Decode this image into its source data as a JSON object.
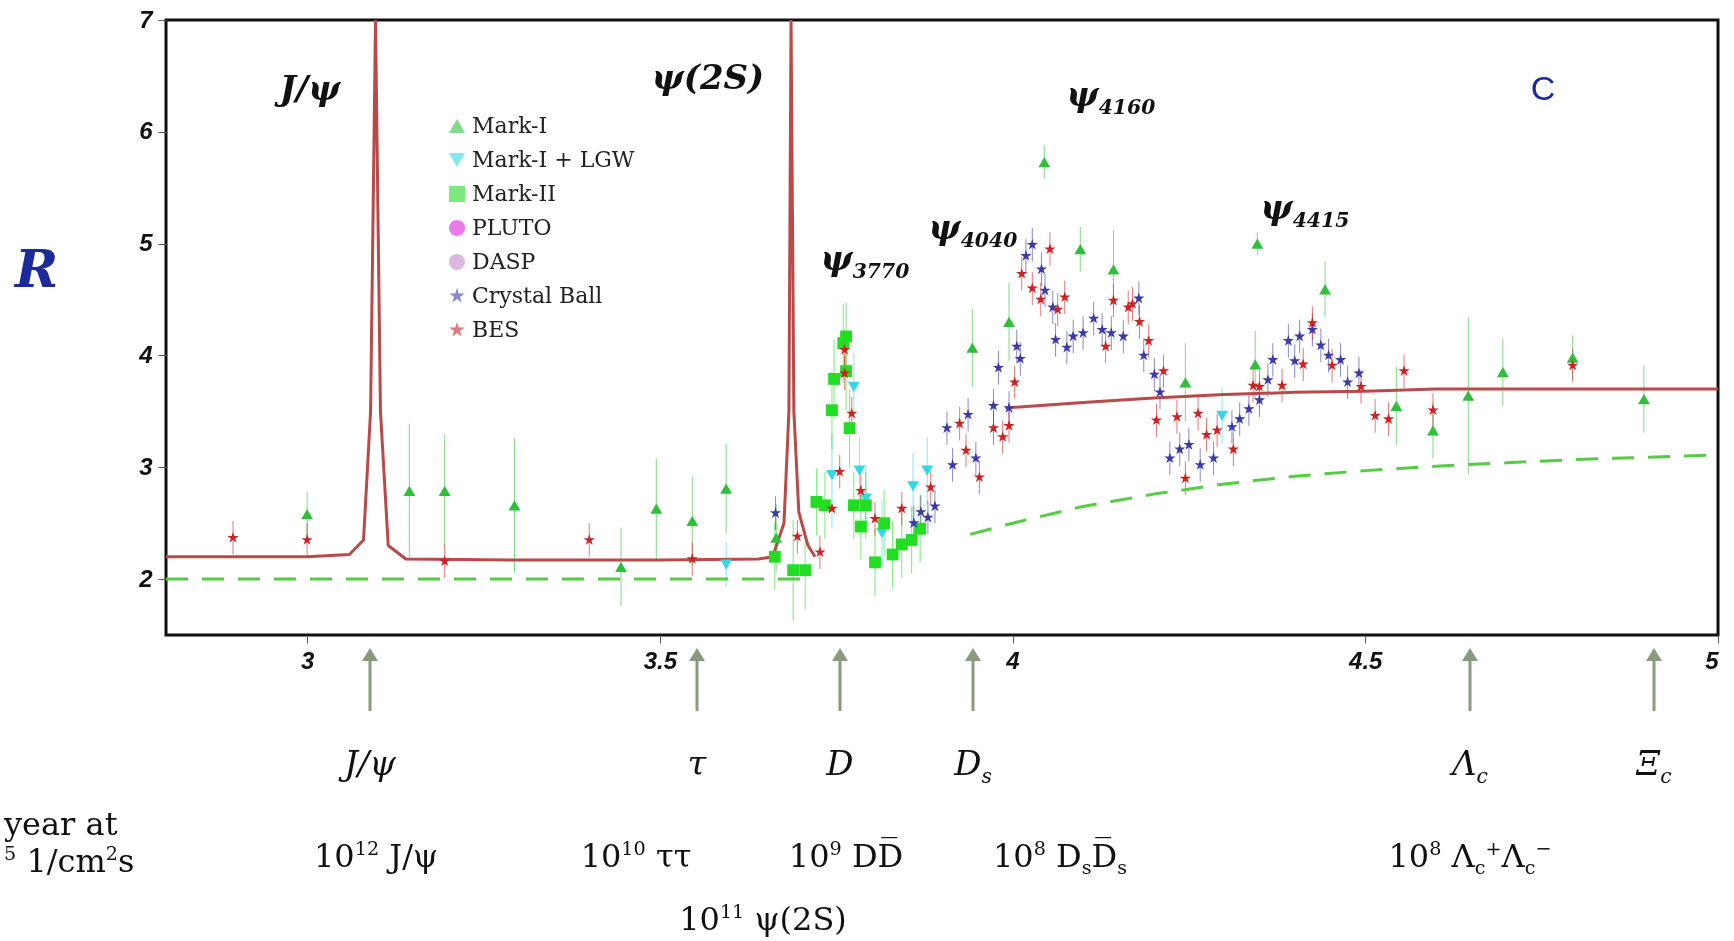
{
  "chart_data": {
    "type": "scatter",
    "ylabel": "R",
    "xlim": [
      2.8,
      5.0
    ],
    "ylim": [
      1.5,
      7
    ],
    "xticks": [
      3,
      3.5,
      4,
      4.5,
      5
    ],
    "yticks": [
      2,
      3,
      4,
      5,
      6,
      7
    ],
    "grid": false,
    "legend": "top left",
    "series": [
      {
        "name": "Mark-I",
        "color": "#2fbf3a",
        "marker": "triangle",
        "x": [
          3.0,
          3.145,
          3.195,
          3.294,
          3.445,
          3.495,
          3.546,
          3.594,
          3.665,
          3.943,
          3.995,
          4.045,
          4.096,
          4.143,
          4.245,
          4.344,
          4.347,
          4.443,
          4.544,
          4.596,
          4.646,
          4.695,
          4.794,
          4.895
        ],
        "values": [
          2.58,
          2.79,
          2.79,
          2.66,
          2.11,
          2.63,
          2.52,
          2.81,
          2.37,
          4.07,
          4.3,
          5.73,
          4.95,
          4.77,
          3.76,
          3.92,
          5.0,
          4.59,
          3.55,
          3.33,
          3.64,
          3.85,
          3.98,
          3.61
        ],
        "errors": [
          0.2,
          0.6,
          0.5,
          0.6,
          0.35,
          0.45,
          0.4,
          0.4,
          0.3,
          0.35,
          0.35,
          0.15,
          0.2,
          0.35,
          0.35,
          0.3,
          0.1,
          0.25,
          0.35,
          0.25,
          0.7,
          0.3,
          0.2,
          0.3
        ]
      },
      {
        "name": "Mark-I + LGW",
        "color": "#33d8e6",
        "marker": "triangle-down",
        "x": [
          3.594,
          3.744,
          3.775,
          3.783,
          3.792,
          3.815,
          3.859,
          3.879,
          4.297
        ],
        "values": [
          2.13,
          2.93,
          3.72,
          2.97,
          2.72,
          2.41,
          2.83,
          2.97,
          3.46
        ],
        "errors": [
          0.2,
          [
            2.45,
            3.3
          ],
          0.3,
          0.3,
          0.3,
          0.3,
          0.3,
          0.3,
          0.25
        ]
      },
      {
        "name": "Mark-II",
        "color": "#22dd22",
        "marker": "square",
        "x": [
          3.663,
          3.689,
          3.706,
          3.722,
          3.734,
          3.744,
          3.747,
          3.76,
          3.764,
          3.764,
          3.769,
          3.775,
          3.785,
          3.792,
          3.805,
          3.818,
          3.83,
          3.843,
          3.857,
          3.869
        ],
        "values": [
          2.2,
          2.08,
          2.08,
          2.69,
          2.66,
          3.51,
          3.79,
          4.11,
          4.17,
          3.86,
          3.35,
          2.66,
          2.47,
          2.66,
          2.15,
          2.5,
          2.22,
          2.31,
          2.35,
          2.45
        ],
        "errors": [
          0.3,
          0.45,
          0.35,
          0.3,
          0.3,
          0.35,
          0.35,
          0.35,
          0.3,
          0.35,
          0.35,
          0.3,
          0.3,
          0.3,
          0.3,
          0.3,
          0.3,
          0.3,
          0.3,
          0.3
        ]
      },
      {
        "name": "PLUTO",
        "color": "#e020e0",
        "marker": "circle"
      },
      {
        "name": "DASP",
        "color": "#c48ac4",
        "marker": "circle"
      },
      {
        "name": "Crystal Ball",
        "color": "#3a3aa8",
        "marker": "star",
        "x": [
          3.664,
          3.86,
          3.87,
          3.88,
          3.89,
          3.907,
          3.915,
          3.937,
          3.948,
          3.973,
          3.98,
          3.995,
          4.006,
          4.011,
          4.019,
          4.028,
          4.041,
          4.046,
          4.057,
          4.061,
          4.077,
          4.086,
          4.1,
          4.115,
          4.127,
          4.14,
          4.157,
          4.179,
          4.186,
          4.201,
          4.209,
          4.223,
          4.237,
          4.25,
          4.266,
          4.285,
          4.311,
          4.322,
          4.335,
          4.35,
          4.362,
          4.369,
          4.391,
          4.4,
          4.407,
          4.425,
          4.437,
          4.448,
          4.465,
          4.475,
          4.491
        ],
        "values": [
          2.59,
          2.5,
          2.6,
          2.55,
          2.65,
          3.35,
          3.02,
          3.47,
          3.08,
          3.55,
          3.89,
          3.53,
          4.08,
          3.97,
          4.89,
          4.99,
          4.77,
          4.58,
          4.43,
          4.14,
          4.07,
          4.17,
          4.2,
          4.33,
          4.23,
          4.2,
          4.17,
          4.51,
          4.0,
          3.83,
          3.67,
          3.08,
          3.16,
          3.2,
          3.02,
          3.08,
          3.36,
          3.43,
          3.52,
          3.6,
          3.78,
          3.96,
          4.13,
          3.95,
          4.17,
          4.23,
          4.09,
          4.0,
          3.96,
          3.76,
          3.84
        ],
        "errors": [
          0.15,
          0.15,
          0.15,
          0.15,
          0.15,
          0.15,
          0.15,
          0.15,
          0.15,
          0.15,
          0.15,
          0.15,
          0.15,
          0.15,
          0.15,
          0.15,
          0.15,
          0.15,
          0.15,
          0.15,
          0.15,
          0.15,
          0.15,
          0.15,
          0.15,
          0.15,
          0.15,
          0.15,
          0.15,
          0.15,
          0.15,
          0.15,
          0.15,
          0.15,
          0.15,
          0.15,
          0.15,
          0.15,
          0.15,
          0.15,
          0.15,
          0.15,
          0.15,
          0.15,
          0.15,
          0.15,
          0.15,
          0.15,
          0.15,
          0.15,
          0.15
        ]
      },
      {
        "name": "BES",
        "color": "#cc2222",
        "marker": "star",
        "x": [
          2.895,
          3.0,
          3.195,
          3.4,
          3.546,
          3.695,
          3.727,
          3.744,
          3.755,
          3.762,
          3.762,
          3.772,
          3.785,
          3.805,
          3.843,
          3.884,
          3.925,
          3.934,
          3.953,
          3.973,
          3.986,
          3.995,
          4.003,
          4.013,
          4.028,
          4.04,
          4.053,
          4.064,
          4.074,
          4.132,
          4.143,
          4.164,
          4.17,
          4.18,
          4.193,
          4.204,
          4.214,
          4.233,
          4.245,
          4.263,
          4.275,
          4.29,
          4.313,
          4.341,
          4.35,
          4.382,
          4.412,
          4.425,
          4.453,
          4.494,
          4.514,
          4.533,
          4.555,
          4.596,
          4.794
        ],
        "values": [
          2.37,
          2.35,
          2.16,
          2.35,
          2.18,
          2.38,
          2.24,
          2.63,
          2.96,
          4.05,
          3.84,
          3.48,
          2.79,
          2.54,
          2.63,
          2.82,
          3.39,
          3.15,
          2.91,
          3.35,
          3.27,
          3.37,
          3.76,
          4.73,
          4.6,
          4.5,
          4.95,
          4.41,
          4.52,
          4.08,
          4.49,
          4.43,
          4.46,
          4.3,
          4.13,
          3.42,
          3.86,
          3.45,
          2.9,
          3.48,
          3.29,
          3.33,
          3.16,
          3.73,
          3.72,
          3.73,
          3.92,
          4.29,
          3.91,
          3.72,
          3.46,
          3.43,
          3.86,
          3.51,
          3.91
        ],
        "errors": [
          0.15,
          0.15,
          0.15,
          0.15,
          0.15,
          0.15,
          0.15,
          null,
          0.15,
          0.15,
          0.15,
          0.15,
          0.15,
          0.15,
          0.15,
          0.15,
          0.15,
          0.15,
          0.15,
          0.15,
          0.15,
          0.15,
          0.15,
          0.15,
          0.15,
          0.15,
          0.15,
          0.15,
          0.15,
          0.15,
          0.15,
          0.15,
          0.15,
          0.15,
          0.15,
          0.15,
          0.15,
          0.15,
          0.15,
          0.15,
          0.15,
          0.15,
          0.15,
          0.15,
          0.15,
          0.15,
          0.15,
          0.15,
          0.15,
          0.15,
          0.15,
          0.15,
          0.15,
          0.15,
          0.15
        ]
      },
      {
        "type": "line",
        "color": "#b84a4a",
        "line_style": "solid",
        "x": [
          2.8,
          3.0,
          3.06,
          3.08,
          3.09,
          3.097,
          3.104,
          3.115,
          3.14,
          3.3,
          3.5,
          3.64,
          3.66,
          3.676,
          3.683,
          3.686,
          3.69,
          3.697,
          3.71,
          3.72,
          3.8,
          3.99,
          4.1,
          4.2,
          4.3,
          4.4,
          4.5,
          4.6,
          4.8,
          5.0
        ],
        "values": [
          2.2,
          2.2,
          2.22,
          2.35,
          3.5,
          7,
          3.5,
          2.3,
          2.18,
          2.17,
          2.17,
          2.18,
          2.2,
          2.5,
          3.5,
          7,
          3.5,
          2.6,
          2.3,
          2.2,
          null,
          3.53,
          3.58,
          3.62,
          3.65,
          3.67,
          3.68,
          3.7,
          3.7,
          3.7
        ]
      },
      {
        "type": "line",
        "color": "#55cc44",
        "line_style": "dashed",
        "x": [
          2.8,
          3.7,
          3.8,
          3.94,
          4.0,
          4.1,
          4.2,
          4.3,
          4.4,
          4.5,
          4.6,
          4.7,
          4.8,
          4.9,
          5.0
        ],
        "values": [
          2,
          2,
          null,
          2.4,
          2.5,
          2.65,
          2.76,
          2.85,
          2.92,
          2.97,
          3.01,
          3.04,
          3.07,
          3.09,
          3.11
        ]
      }
    ],
    "annotations": [
      "J/ψ",
      "ψ(2S)",
      "ψ$_{3770}$",
      "ψ$_{4040}$",
      "ψ$_{4160}$",
      "ψ$_{4415}$",
      "C",
      "J/ψ",
      "τ",
      "D",
      "D$_{s}$",
      "Λ$_{c}$",
      "Ξ$_{c}$",
      "year at",
      "$^{5}$ 1/cm$^{2}$s",
      "10$^{12}$ J/ψ",
      "10$^{10}$ ττ",
      "10$^{9}$ DD̅",
      "10$^{8}$ D$_{s}$D̅$_{s}$",
      "10$^{8}$ Λ$_{c}$$^{+}$Λ$_{c}$$^{−}$",
      "10$^{11}$ ψ(2S)"
    ]
  }
}
